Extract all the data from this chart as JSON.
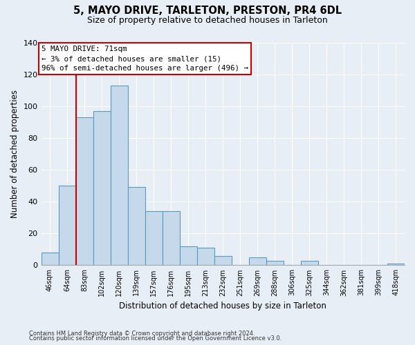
{
  "title": "5, MAYO DRIVE, TARLETON, PRESTON, PR4 6DL",
  "subtitle": "Size of property relative to detached houses in Tarleton",
  "xlabel": "Distribution of detached houses by size in Tarleton",
  "ylabel": "Number of detached properties",
  "bar_labels": [
    "46sqm",
    "64sqm",
    "83sqm",
    "102sqm",
    "120sqm",
    "139sqm",
    "157sqm",
    "176sqm",
    "195sqm",
    "213sqm",
    "232sqm",
    "251sqm",
    "269sqm",
    "288sqm",
    "306sqm",
    "325sqm",
    "344sqm",
    "362sqm",
    "381sqm",
    "399sqm",
    "418sqm"
  ],
  "bar_values": [
    8,
    50,
    93,
    97,
    113,
    49,
    34,
    34,
    12,
    11,
    6,
    0,
    5,
    3,
    0,
    3,
    0,
    0,
    0,
    0,
    1
  ],
  "bar_color": "#c5d9ea",
  "bar_edge_color": "#5b9abf",
  "ylim": [
    0,
    140
  ],
  "yticks": [
    0,
    20,
    40,
    60,
    80,
    100,
    120,
    140
  ],
  "vline_color": "#cc0000",
  "annotation_title": "5 MAYO DRIVE: 71sqm",
  "annotation_line1": "← 3% of detached houses are smaller (15)",
  "annotation_line2": "96% of semi-detached houses are larger (496) →",
  "annotation_box_color": "#cc0000",
  "footnote1": "Contains HM Land Registry data © Crown copyright and database right 2024.",
  "footnote2": "Contains public sector information licensed under the Open Government Licence v3.0.",
  "background_color": "#e8eef5",
  "grid_color": "#ffffff"
}
